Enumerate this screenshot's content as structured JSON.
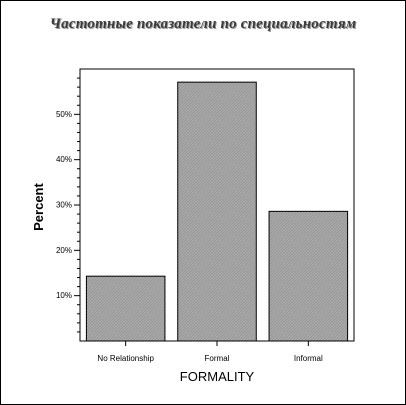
{
  "chart_data": {
    "type": "bar",
    "title": "Частотные показатели по специальностям",
    "xlabel": "FORMALITY",
    "ylabel": "Percent",
    "categories": [
      "No Relationship",
      "Formal",
      "Informal"
    ],
    "values": [
      14.3,
      57.1,
      28.6
    ],
    "yticks": [
      10,
      20,
      30,
      40,
      50
    ],
    "ytick_labels": [
      "10%",
      "20%",
      "30%",
      "40%",
      "50%"
    ],
    "ylim": [
      0,
      60
    ],
    "grid": false,
    "legend": "none",
    "colors": {
      "bar_fill": "#a6a6a6",
      "bar_stroke": "#000000",
      "axis": "#000000"
    }
  }
}
